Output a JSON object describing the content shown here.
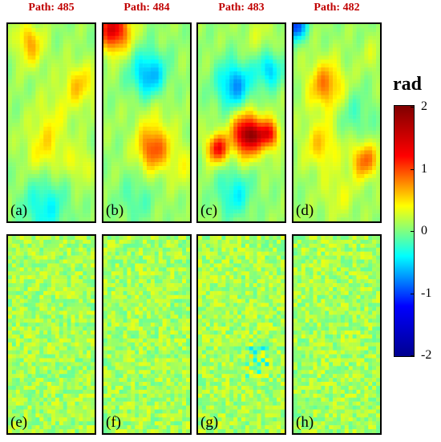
{
  "path_titles": [
    "Path: 485",
    "Path: 484",
    "Path: 483",
    "Path: 482"
  ],
  "panels": [
    {
      "label": "(a)",
      "row": 0,
      "col": 0,
      "kind": "unwrapped-phase"
    },
    {
      "label": "(b)",
      "row": 0,
      "col": 1,
      "kind": "unwrapped-phase"
    },
    {
      "label": "(c)",
      "row": 0,
      "col": 2,
      "kind": "unwrapped-phase"
    },
    {
      "label": "(d)",
      "row": 0,
      "col": 3,
      "kind": "unwrapped-phase"
    },
    {
      "label": "(e)",
      "row": 1,
      "col": 0,
      "kind": "residual"
    },
    {
      "label": "(f)",
      "row": 1,
      "col": 1,
      "kind": "residual"
    },
    {
      "label": "(g)",
      "row": 1,
      "col": 2,
      "kind": "residual"
    },
    {
      "label": "(h)",
      "row": 1,
      "col": 3,
      "kind": "residual"
    }
  ],
  "colorbar": {
    "unit": "rad",
    "min": -2,
    "max": 2,
    "ticks": [
      "2",
      "1",
      "0",
      "-1",
      "-2"
    ],
    "colormap": "jet",
    "colors": [
      "#00008f",
      "#0000ff",
      "#00ffff",
      "#ffff00",
      "#ff0000",
      "#800000"
    ]
  },
  "title_color": "#c00000"
}
